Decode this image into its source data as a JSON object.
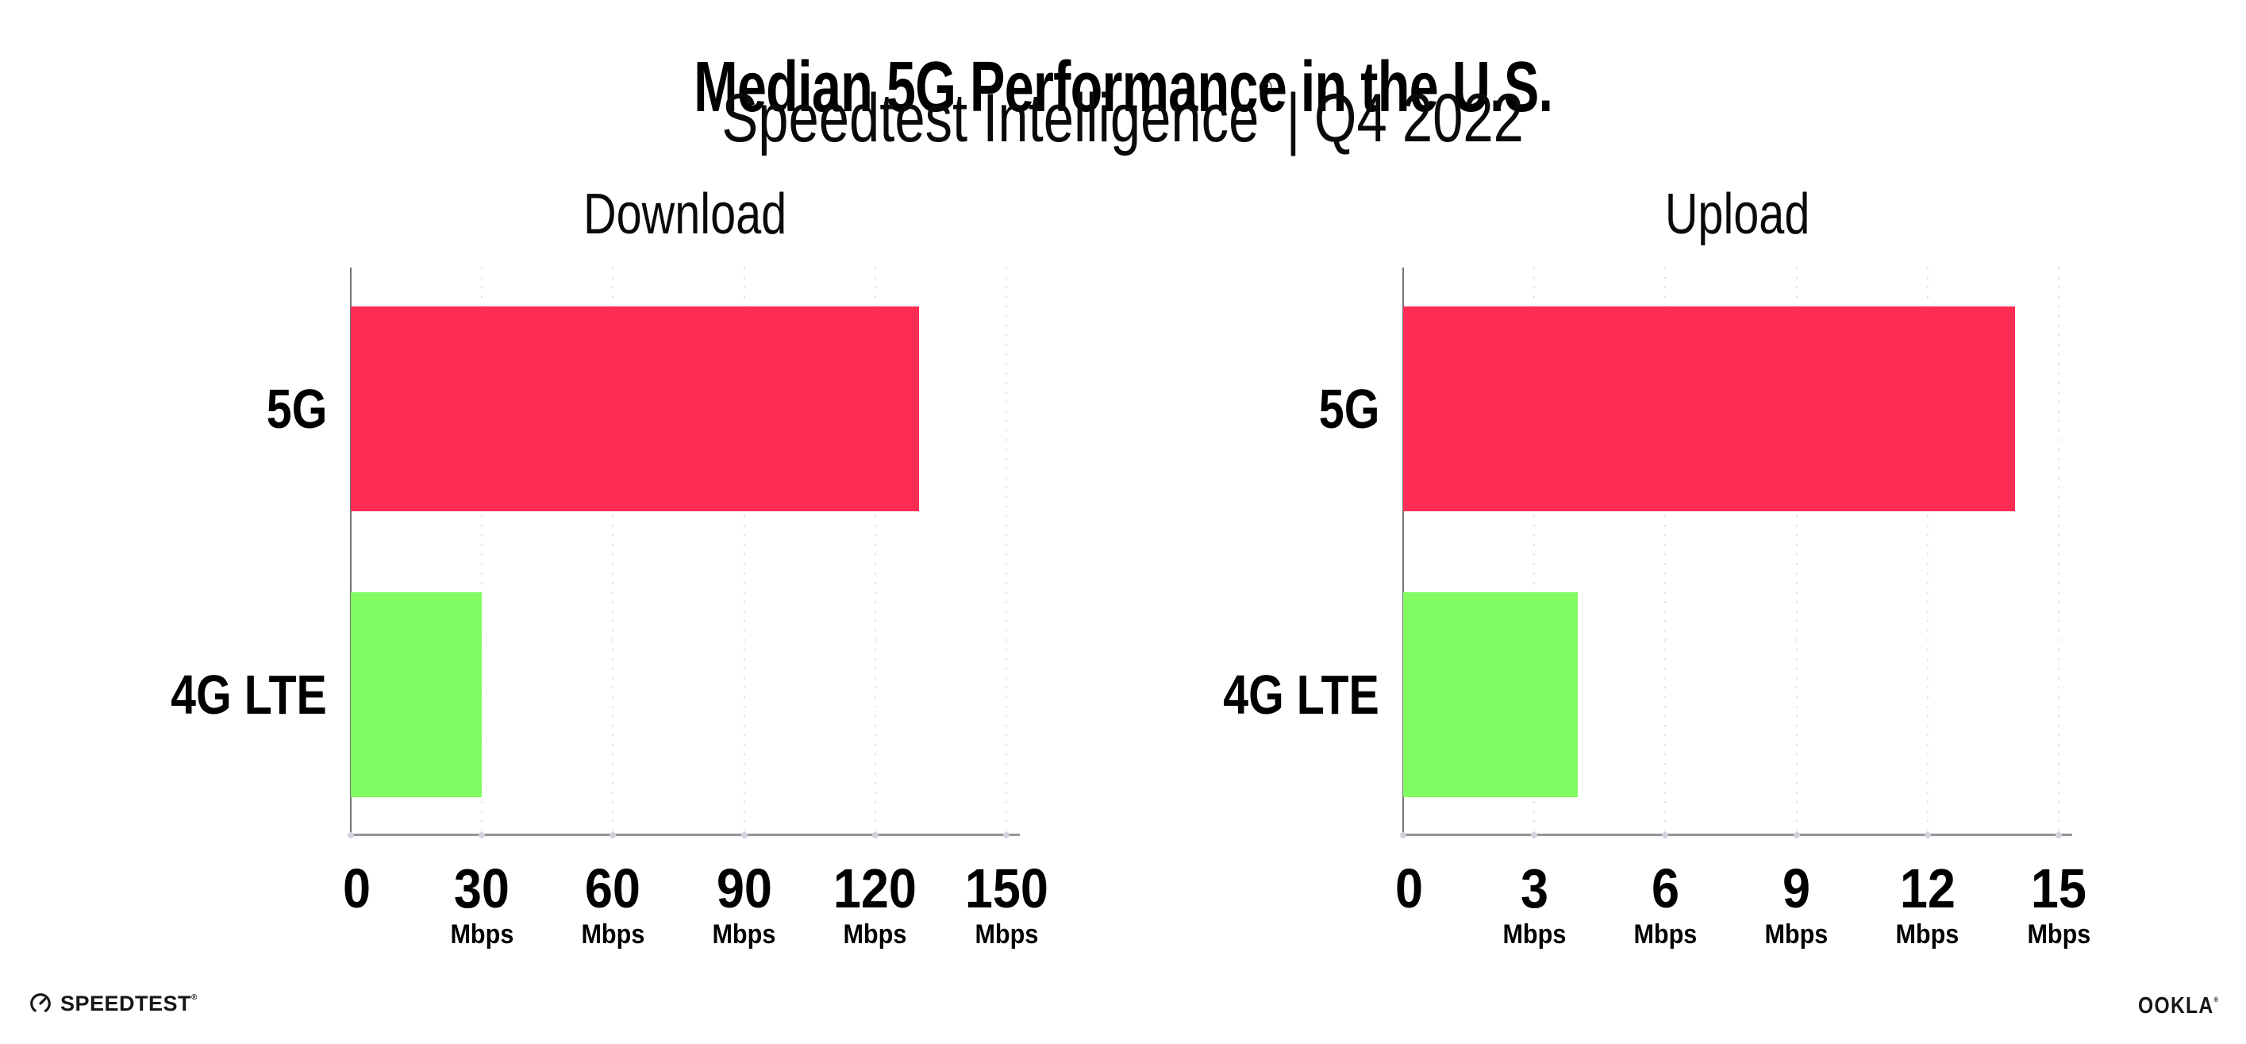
{
  "header": {
    "title": "Median 5G Performance in the U.S.",
    "subtitle_brand": "Speedtest Intelligence",
    "subtitle_mark": "®",
    "subtitle_separator": "|",
    "subtitle_period": "Q4 2022"
  },
  "chart_data": [
    {
      "type": "bar",
      "orientation": "horizontal",
      "title": "Download",
      "categories": [
        "5G",
        "4G LTE"
      ],
      "values": [
        130,
        30
      ],
      "unit": "Mbps",
      "xlim": [
        0,
        150
      ],
      "xticks": [
        0,
        30,
        60,
        90,
        120,
        150
      ],
      "bar_colors": [
        "#ff2d55",
        "#80fb62"
      ],
      "grid": "dotted-vertical",
      "legend": "none"
    },
    {
      "type": "bar",
      "orientation": "horizontal",
      "title": "Upload",
      "categories": [
        "5G",
        "4G LTE"
      ],
      "values": [
        14,
        4
      ],
      "unit": "Mbps",
      "xlim": [
        0,
        15
      ],
      "xticks": [
        0,
        3,
        6,
        9,
        12,
        15
      ],
      "bar_colors": [
        "#ff2d55",
        "#80fb62"
      ],
      "grid": "dotted-vertical",
      "legend": "none"
    }
  ],
  "footer": {
    "speedtest_label": "SPEEDTEST",
    "speedtest_mark": "®",
    "ookla_label": "OOKLA",
    "ookla_mark": "®"
  },
  "colors": {
    "bar_5g": "#ff2d55",
    "bar_4g_lte": "#80fb62",
    "gridline": "#e0e1ec",
    "axis": "#94949b",
    "text": "#000000"
  }
}
